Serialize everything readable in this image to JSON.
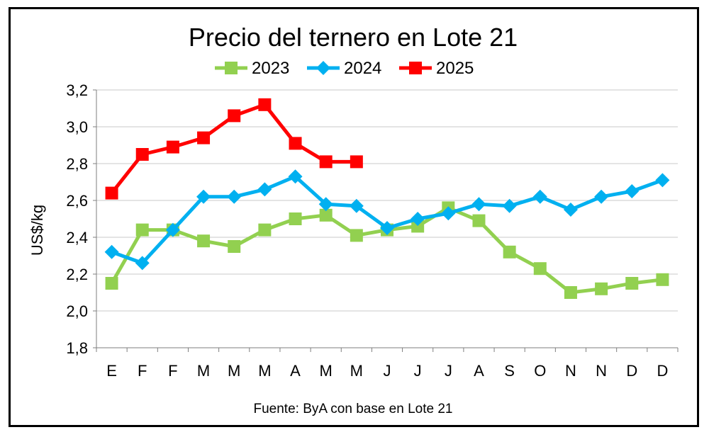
{
  "chart_data": {
    "type": "line",
    "title": "Precio del ternero en Lote 21",
    "ylabel": "US$/kg",
    "xlabel": "",
    "source": "Fuente: ByA con base en Lote 21",
    "ylim": [
      1.8,
      3.2
    ],
    "yticks": [
      1.8,
      2.0,
      2.2,
      2.4,
      2.6,
      2.8,
      3.0,
      3.2
    ],
    "ytick_labels": [
      "1,8",
      "2,0",
      "2,2",
      "2,4",
      "2,6",
      "2,8",
      "3,0",
      "3,2"
    ],
    "grid": true,
    "legend_position": "top",
    "categories": [
      "E",
      "F",
      "F",
      "M",
      "M",
      "M",
      "A",
      "M",
      "M",
      "J",
      "J",
      "J",
      "A",
      "S",
      "O",
      "N",
      "N",
      "D",
      "D"
    ],
    "series": [
      {
        "name": "2023",
        "color": "#92d050",
        "marker": "square",
        "values": [
          2.15,
          2.44,
          2.44,
          2.38,
          2.35,
          2.44,
          2.5,
          2.52,
          2.41,
          2.44,
          2.46,
          2.56,
          2.49,
          2.32,
          2.23,
          2.1,
          2.12,
          2.15,
          2.17
        ]
      },
      {
        "name": "2024",
        "color": "#00b0f0",
        "marker": "diamond",
        "values": [
          2.32,
          2.26,
          2.44,
          2.62,
          2.62,
          2.66,
          2.73,
          2.58,
          2.57,
          2.45,
          2.5,
          2.53,
          2.58,
          2.57,
          2.62,
          2.55,
          2.62,
          2.65,
          2.71
        ]
      },
      {
        "name": "2025",
        "color": "#ff0000",
        "marker": "square",
        "values": [
          2.64,
          2.85,
          2.89,
          2.94,
          3.06,
          3.12,
          2.91,
          2.81,
          2.81,
          null,
          null,
          null,
          null,
          null,
          null,
          null,
          null,
          null,
          null
        ]
      }
    ]
  }
}
